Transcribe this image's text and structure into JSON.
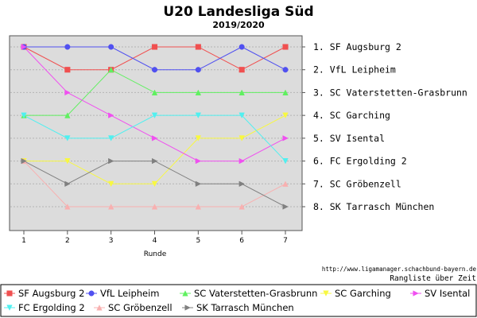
{
  "chart_data": {
    "type": "line",
    "title": "U20 Landesliga Süd",
    "subtitle": "2019/2020",
    "xlabel": "Runde",
    "ylabel": "",
    "x": [
      1,
      2,
      3,
      4,
      5,
      6,
      7
    ],
    "ylim": [
      1,
      8
    ],
    "y_inverted": true,
    "grid": "horizontal dashed",
    "background": "#dcdcdc",
    "rank_labels": [
      "1. SF Augsburg 2",
      "2. VfL Leipheim",
      "3. SC Vaterstetten-Grasbrunn",
      "4. SC Garching",
      "5. SV Isental",
      "6. FC Ergolding 2",
      "7. SC Gröbenzell",
      "8. SK Tarrasch München"
    ],
    "series": [
      {
        "name": "SF Augsburg 2",
        "color": "#f05050",
        "marker": "square",
        "values": [
          1,
          2,
          2,
          1,
          1,
          2,
          1
        ]
      },
      {
        "name": "VfL Leipheim",
        "color": "#5050f0",
        "marker": "circle",
        "values": [
          1,
          1,
          1,
          2,
          2,
          1,
          2
        ]
      },
      {
        "name": "SC Vaterstetten-Grasbrunn",
        "color": "#60f060",
        "marker": "triangle-up",
        "values": [
          4,
          4,
          2,
          3,
          3,
          3,
          3
        ]
      },
      {
        "name": "SC Garching",
        "color": "#f8f840",
        "marker": "triangle-down",
        "values": [
          6,
          6,
          7,
          7,
          5,
          5,
          4
        ]
      },
      {
        "name": "SV Isental",
        "color": "#f050f0",
        "marker": "triangle-right",
        "values": [
          1,
          3,
          4,
          5,
          6,
          6,
          5
        ]
      },
      {
        "name": "FC Ergolding 2",
        "color": "#50f0f0",
        "marker": "triangle-down",
        "values": [
          4,
          5,
          5,
          4,
          4,
          4,
          6
        ]
      },
      {
        "name": "SC Gröbenzell",
        "color": "#f8b0b0",
        "marker": "triangle-up",
        "values": [
          6,
          8,
          8,
          8,
          8,
          8,
          7
        ]
      },
      {
        "name": "SK Tarrasch München",
        "color": "#808080",
        "marker": "triangle-right",
        "values": [
          6,
          7,
          6,
          6,
          7,
          7,
          8
        ]
      }
    ],
    "annotations": [
      "http://www.ligamanager.schachbund-bayern.de",
      "Rangliste über Zeit"
    ],
    "legend_placement": "bottom"
  }
}
